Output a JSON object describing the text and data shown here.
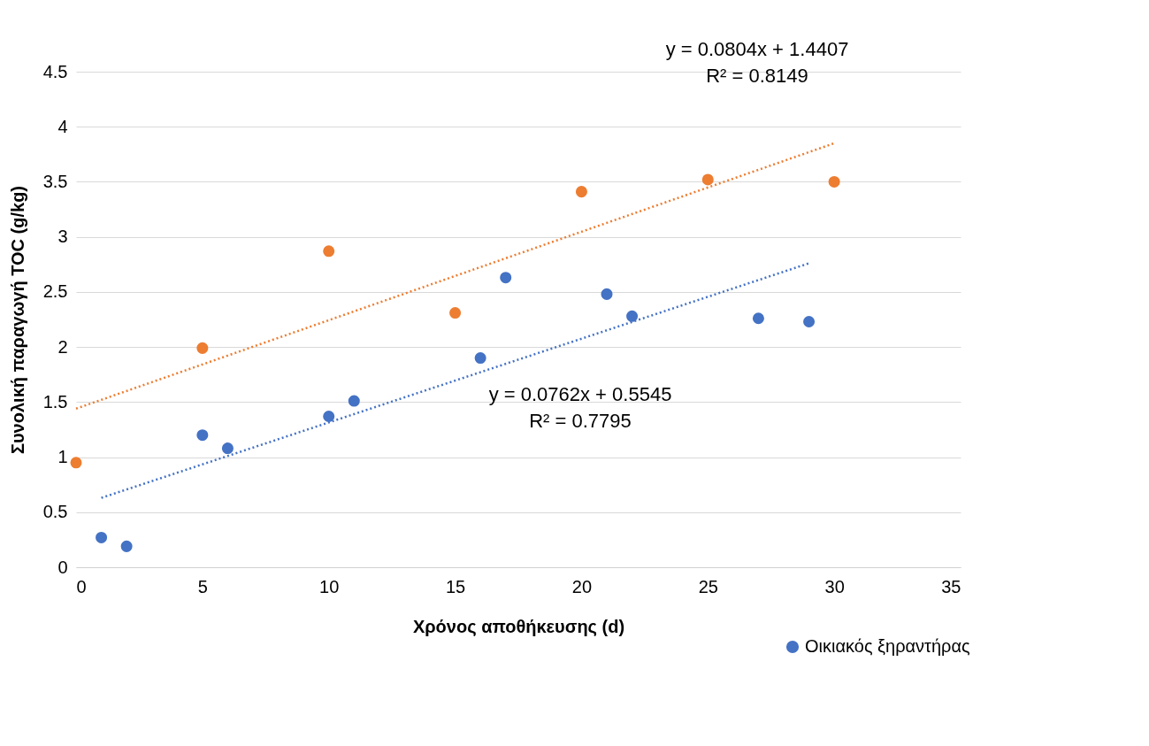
{
  "chart_data": {
    "type": "scatter",
    "xlabel": "Χρόνος αποθήκευσης (d)",
    "ylabel": "Συνολική παραγωγή TOC (g/kg)",
    "xlim": [
      0,
      35
    ],
    "xticks": [
      0,
      5,
      10,
      15,
      20,
      25,
      30,
      35
    ],
    "ylim": [
      0,
      4.5
    ],
    "yticks": [
      0,
      0.5,
      1,
      1.5,
      2,
      2.5,
      3,
      3.5,
      4,
      4.5
    ],
    "grid": "y",
    "legend": "bottom right",
    "marker": "circle",
    "series": [
      {
        "name": "Οικιακός ξηραντήρας",
        "color": "#4472c4",
        "x": [
          1,
          2,
          5,
          6,
          10,
          11,
          16,
          17,
          21,
          22,
          27,
          29
        ],
        "values": [
          0.27,
          0.19,
          1.2,
          1.08,
          1.37,
          1.51,
          1.9,
          2.63,
          2.48,
          2.28,
          2.26,
          2.23
        ]
      },
      {
        "color": "#ed7d31",
        "x": [
          0,
          5,
          10,
          15,
          20,
          25,
          30
        ],
        "values": [
          0.95,
          1.99,
          2.87,
          2.31,
          3.41,
          3.52,
          3.5
        ]
      },
      {
        "type": "line",
        "line_style": "dotted",
        "marker": "none",
        "color": "#4472c4",
        "x": [
          1,
          29
        ],
        "values": [
          0.63,
          2.76
        ]
      },
      {
        "type": "line",
        "line_style": "dotted",
        "marker": "none",
        "color": "#ed7d31",
        "x": [
          0,
          30
        ],
        "values": [
          1.44,
          3.85
        ]
      }
    ],
    "annotations": [
      "y = 0.0804x + 1.4407",
      "R² = 0.8149",
      "y = 0.0762x + 0.5545",
      "R² = 0.7795"
    ]
  }
}
